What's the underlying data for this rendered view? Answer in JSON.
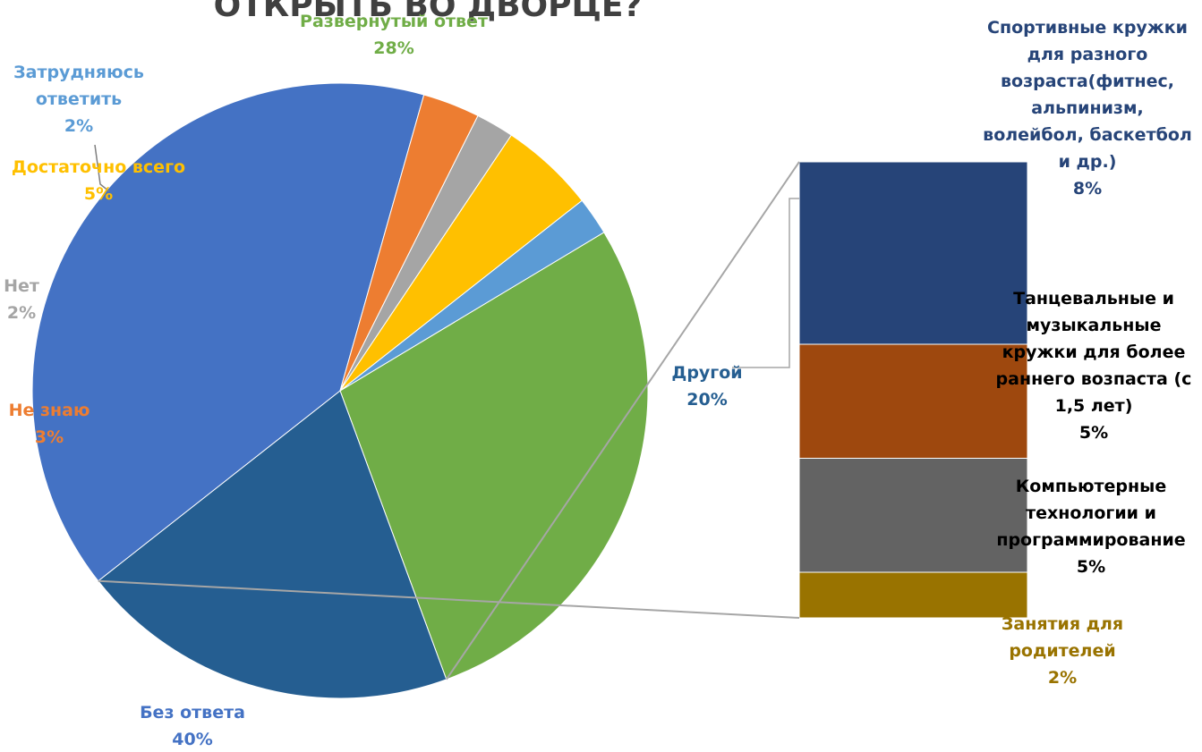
{
  "chart_data": {
    "type": "pie",
    "title": "ОТКРЫТЬ ВО ДВОРЦЕ?",
    "slices": [
      {
        "label_lines": [
          "Развернутый ответ"
        ],
        "value": 28,
        "pct": "28%",
        "color": "#70AD47",
        "label_color": "#70AD47"
      },
      {
        "label_lines": [
          "Другой"
        ],
        "value": 20,
        "pct": "20%",
        "color": "#255E91",
        "label_color": "#255E91",
        "breakout": true
      },
      {
        "label_lines": [
          "Без ответа"
        ],
        "value": 40,
        "pct": "40%",
        "color": "#4472C4",
        "label_color": "#4472C4"
      },
      {
        "label_lines": [
          "Не знаю"
        ],
        "value": 3,
        "pct": "3%",
        "color": "#ED7D31",
        "label_color": "#ED7D31"
      },
      {
        "label_lines": [
          "Нет"
        ],
        "value": 2,
        "pct": "2%",
        "color": "#A5A5A5",
        "label_color": "#A5A5A5"
      },
      {
        "label_lines": [
          "Достаточно всего"
        ],
        "value": 5,
        "pct": "5%",
        "color": "#FFC000",
        "label_color": "#FFC000"
      },
      {
        "label_lines": [
          "Затрудняюсь",
          "ответить"
        ],
        "value": 2,
        "pct": "2%",
        "color": "#5B9BD5",
        "label_color": "#5B9BD5"
      }
    ],
    "breakout_bar": {
      "source_slice": "Другой",
      "segments": [
        {
          "label_lines": [
            "Спортивные кружки",
            "для разного",
            "возраста(фитнес,",
            "альпинизм,",
            "волейбол, баскетбол",
            "и др.)"
          ],
          "value": 8,
          "pct": "8%",
          "color": "#264478",
          "label_color": "#264478"
        },
        {
          "label_lines": [
            "Танцевальные и",
            "музыкальные",
            "кружки для более",
            "раннего возпаста (с",
            "1,5 лет)"
          ],
          "value": 5,
          "pct": "5%",
          "color": "#9E480E",
          "label_color": "#000000"
        },
        {
          "label_lines": [
            "Компьютерные",
            "технологии и",
            "программирование"
          ],
          "value": 5,
          "pct": "5%",
          "color": "#636363",
          "label_color": "#000000"
        },
        {
          "label_lines": [
            "Занятия для",
            "родителей"
          ],
          "value": 2,
          "pct": "2%",
          "color": "#997300",
          "label_color": "#997300"
        }
      ]
    }
  }
}
